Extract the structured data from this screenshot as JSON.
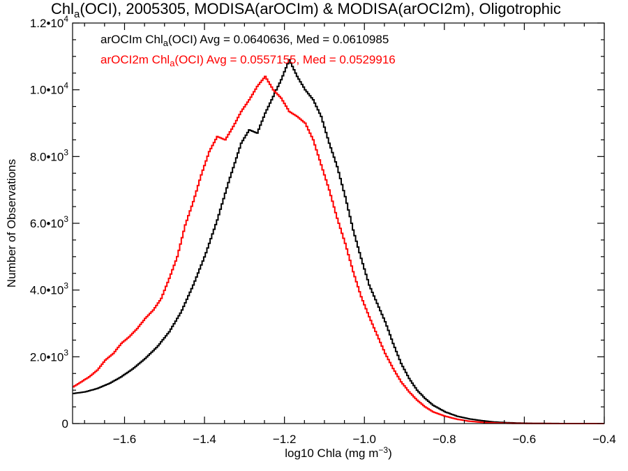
{
  "chart_data": {
    "type": "line",
    "title": {
      "main": "Chl",
      "sub": "a",
      "rest": "(OCI), 2005305, MODISA(arOCIm) & MODISA(arOCI2m), Oligotrophic"
    },
    "xlabel": {
      "main": "log10 Chla (mg m",
      "sup": "−3",
      "end": ")"
    },
    "ylabel": "Number of Observations",
    "xlim": [
      -1.73,
      -0.4
    ],
    "ylim": [
      0,
      12000
    ],
    "grid": false,
    "x_ticks": [
      -1.6,
      -1.4,
      -1.2,
      -1.0,
      -0.8,
      -0.6,
      -0.4
    ],
    "x_tick_labels": [
      "−1.6",
      "−1.4",
      "−1.2",
      "−1.0",
      "−0.8",
      "−0.6",
      "−0.4"
    ],
    "y_ticks": [
      {
        "value": 0,
        "mant": "0",
        "exp": ""
      },
      {
        "value": 2000,
        "mant": "2.0•10",
        "exp": "3"
      },
      {
        "value": 4000,
        "mant": "4.0•10",
        "exp": "3"
      },
      {
        "value": 6000,
        "mant": "6.0•10",
        "exp": "3"
      },
      {
        "value": 8000,
        "mant": "8.0•10",
        "exp": "3"
      },
      {
        "value": 10000,
        "mant": "1.0•10",
        "exp": "4"
      },
      {
        "value": 12000,
        "mant": "1.2•10",
        "exp": "4"
      }
    ],
    "annotations": [
      {
        "pre": "arOCIm Chl",
        "sub": "a",
        "post": "(OCI) Avg = 0.0640636, Med = 0.0610985",
        "color": "#000000"
      },
      {
        "pre": "arOCI2m Chl",
        "sub": "a",
        "post": "(OCI) Avg = 0.0557155, Med = 0.0529916",
        "color": "#ff0000"
      }
    ],
    "series": [
      {
        "color": "#000000",
        "x": [
          -1.73,
          -1.7,
          -1.67,
          -1.64,
          -1.61,
          -1.58,
          -1.55,
          -1.52,
          -1.49,
          -1.46,
          -1.43,
          -1.4,
          -1.37,
          -1.34,
          -1.31,
          -1.29,
          -1.27,
          -1.25,
          -1.23,
          -1.21,
          -1.19,
          -1.17,
          -1.15,
          -1.13,
          -1.11,
          -1.09,
          -1.07,
          -1.05,
          -1.03,
          -1.01,
          -0.99,
          -0.97,
          -0.95,
          -0.93,
          -0.91,
          -0.89,
          -0.87,
          -0.85,
          -0.83,
          -0.8,
          -0.77,
          -0.74,
          -0.71,
          -0.68,
          -0.65,
          -0.62,
          -0.59,
          -0.55,
          -0.5,
          -0.45,
          -0.4
        ],
        "y": [
          900,
          950,
          1050,
          1200,
          1400,
          1650,
          1950,
          2300,
          2750,
          3350,
          4150,
          5050,
          6100,
          7300,
          8400,
          8800,
          8700,
          9300,
          9800,
          10300,
          10900,
          10400,
          10000,
          9700,
          9200,
          8400,
          7700,
          6800,
          5800,
          4950,
          4150,
          3600,
          3050,
          2400,
          1800,
          1350,
          1000,
          750,
          550,
          350,
          220,
          140,
          90,
          50,
          30,
          15,
          8,
          3,
          0,
          0,
          0
        ]
      },
      {
        "color": "#ff0000",
        "x": [
          -1.73,
          -1.71,
          -1.69,
          -1.67,
          -1.65,
          -1.63,
          -1.61,
          -1.59,
          -1.57,
          -1.55,
          -1.53,
          -1.51,
          -1.49,
          -1.47,
          -1.45,
          -1.43,
          -1.41,
          -1.39,
          -1.37,
          -1.35,
          -1.33,
          -1.31,
          -1.29,
          -1.27,
          -1.25,
          -1.23,
          -1.21,
          -1.19,
          -1.17,
          -1.15,
          -1.13,
          -1.11,
          -1.09,
          -1.07,
          -1.05,
          -1.03,
          -1.01,
          -0.99,
          -0.97,
          -0.95,
          -0.93,
          -0.91,
          -0.89,
          -0.87,
          -0.85,
          -0.83,
          -0.8,
          -0.77,
          -0.74,
          -0.7,
          -0.65,
          -0.6,
          -0.5,
          -0.4
        ],
        "y": [
          1100,
          1250,
          1400,
          1600,
          1900,
          2100,
          2400,
          2600,
          2850,
          3150,
          3400,
          3750,
          4350,
          5000,
          5950,
          6650,
          7450,
          8150,
          8600,
          8500,
          8900,
          9350,
          9700,
          10100,
          10400,
          10000,
          9750,
          9350,
          9200,
          9000,
          8500,
          7750,
          7000,
          6150,
          5400,
          4550,
          3800,
          3200,
          2650,
          2100,
          1650,
          1250,
          950,
          700,
          500,
          350,
          220,
          130,
          70,
          30,
          10,
          3,
          0,
          0
        ]
      }
    ]
  }
}
